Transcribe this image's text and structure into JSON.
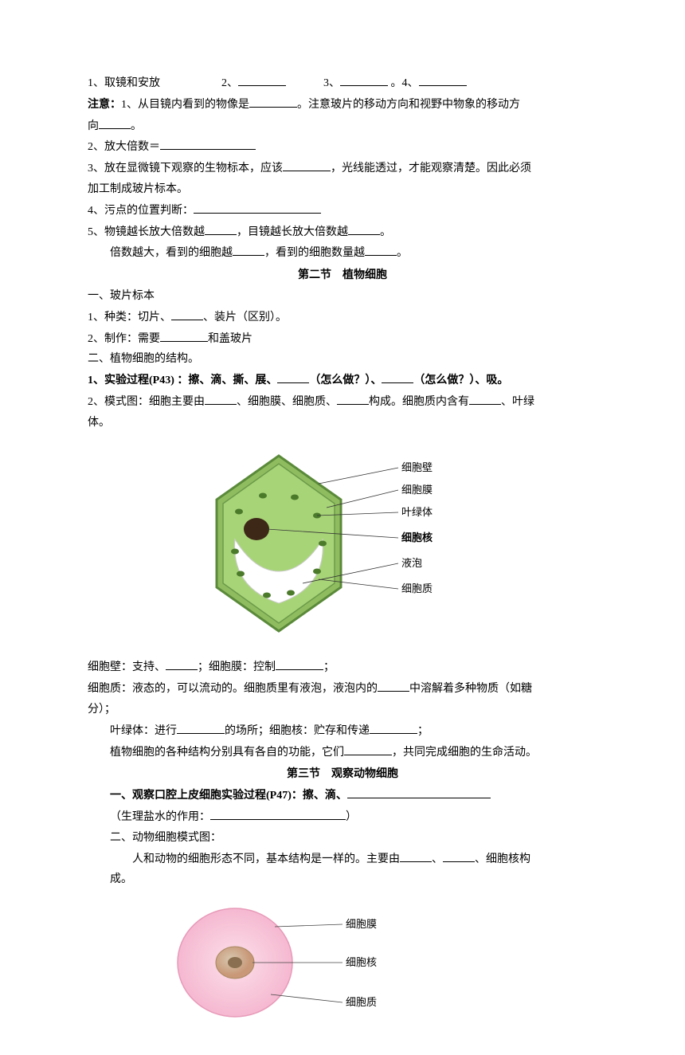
{
  "line1": {
    "n1": "1、取镜和安放",
    "n2": "2、",
    "n3": "3、",
    "n4": "。4、"
  },
  "line2a": "注意：",
  "line2b": "1、从目镜内看到的物像是",
  "line2c": "。注意玻片的移动方向和视野中物象的移动方",
  "line2d": "向",
  "line2e": "。",
  "line3": "2、放大倍数＝",
  "line4a": "3、放在显微镜下观察的生物标本，应该",
  "line4b": "，光线能透过，才能观察清楚。因此必须",
  "line4c": "加工制成玻片标本。",
  "line5": "4、污点的位置判断：",
  "line6a": "5、物镜越长放大倍数越",
  "line6b": "，目镜越长放大倍数越",
  "line6c": "。",
  "line7a": "倍数越大，看到的细胞越",
  "line7b": "，看到的细胞数量越",
  "line7c": "。",
  "section2": "第二节　植物细胞",
  "sec2_1": "一、玻片标本",
  "sec2_2a": "1、种类：切片、",
  "sec2_2b": "、装片（区别）。",
  "sec2_3a": "2、制作：需要",
  "sec2_3b": "和盖玻片",
  "sec2_4": "二、植物细胞的结构。",
  "sec2_5a": "1、实验过程(P43) ：擦、滴、撕、展、",
  "sec2_5b": "（怎么做？）、",
  "sec2_5c": "（怎么做？）、吸。",
  "sec2_6a": "2、模式图：细胞主要由",
  "sec2_6b": "、细胞膜、细胞质、",
  "sec2_6c": "构成。细胞质内含有",
  "sec2_6d": "、叶绿",
  "sec2_6e": "体。",
  "plant_diagram": {
    "labels": {
      "wall": "细胞壁",
      "membrane": "细胞膜",
      "chloroplast": "叶绿体",
      "nucleus": "细胞核",
      "vacuole": "液泡",
      "cytoplasm": "细胞质"
    },
    "colors": {
      "wall_outer": "#5a8a3a",
      "wall_fill": "#8fbc5f",
      "cytoplasm_fill": "#a8d478",
      "membrane_line": "#6b9b4a",
      "vacuole_fill": "#ffffff",
      "nucleus_fill": "#3d2817",
      "chloroplast_fill": "#4a7a2a",
      "label_line": "#333333",
      "label_text": "#000000"
    },
    "label_fontsize": 13,
    "nucleus_bold": true
  },
  "post_plant_1a": "细胞壁：支持、",
  "post_plant_1b": "；细胞膜：控制",
  "post_plant_1c": "；",
  "post_plant_2a": "细胞质：液态的，可以流动的。细胞质里有液泡，液泡内的",
  "post_plant_2b": "中溶解着多种物质（如糖",
  "post_plant_2c": "分）；",
  "post_plant_3a": "叶绿体：进行",
  "post_plant_3b": "的场所；细胞核：贮存和传递",
  "post_plant_3c": "；",
  "post_plant_4a": "植物细胞的各种结构分别具有各自的功能，它们",
  "post_plant_4b": "，共同完成细胞的生命活动。",
  "section3": "第三节　观察动物细胞",
  "sec3_1a": "一、观察口腔上皮细胞实验过程(P47)：擦、滴、",
  "sec3_2a": "（生理盐水的作用：",
  "sec3_2b": "）",
  "sec3_3": "二、动物细胞模式图：",
  "sec3_4a": "人和动物的细胞形态不同，基本结构是一样的。主要由",
  "sec3_4b": "、",
  "sec3_4c": "、细胞核构",
  "sec3_4d": "成。",
  "animal_diagram": {
    "labels": {
      "membrane": "细胞膜",
      "nucleus": "细胞核",
      "cytoplasm": "细胞质"
    },
    "colors": {
      "cell_fill": "#f5b8d0",
      "cell_edge": "#e89ab8",
      "nucleus_outer": "#c89878",
      "nucleus_inner": "#8a7050",
      "label_line": "#444444",
      "label_text": "#000000"
    },
    "label_fontsize": 13
  }
}
